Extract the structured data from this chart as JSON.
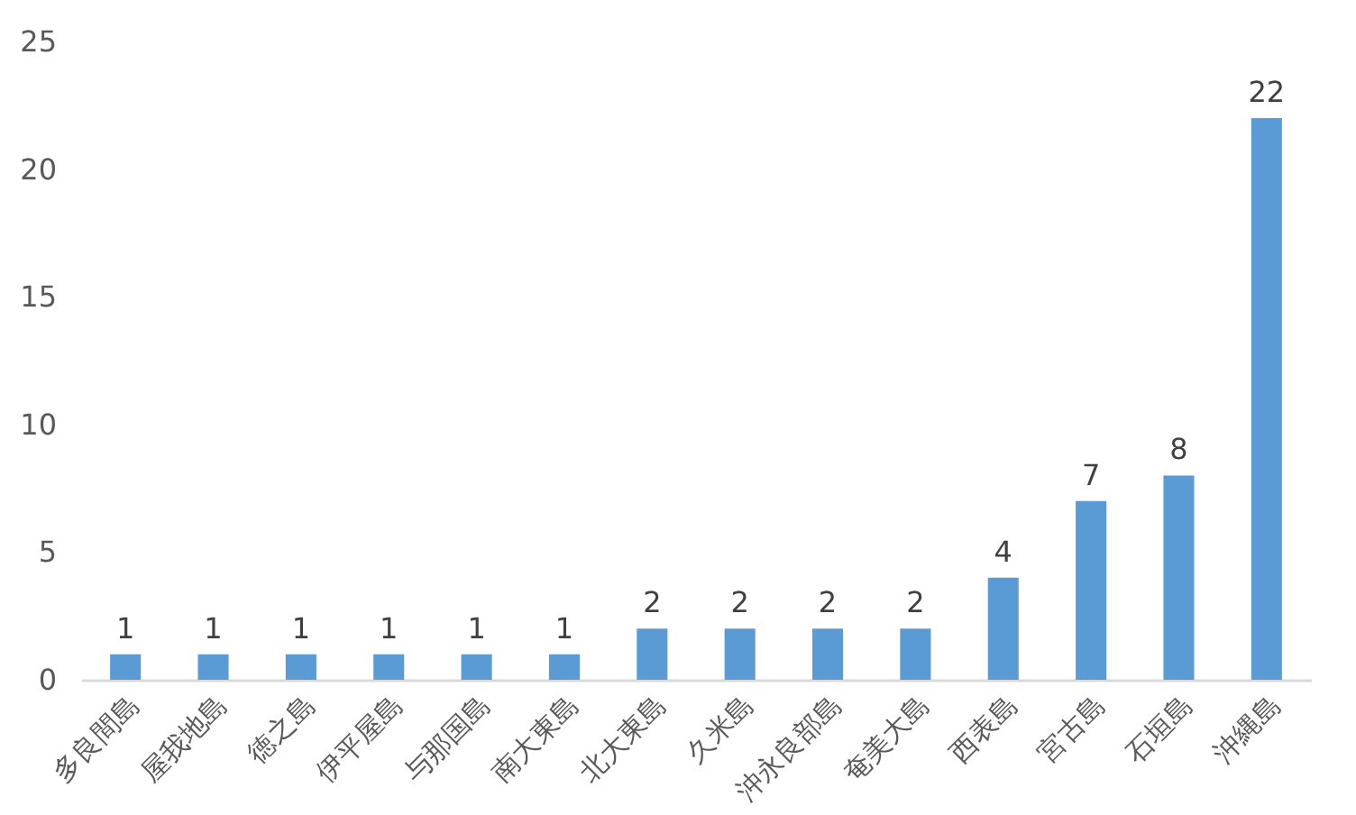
{
  "chart_data": {
    "type": "bar",
    "categories": [
      "多良間島",
      "屋我地島",
      "徳之島",
      "伊平屋島",
      "与那国島",
      "南大東島",
      "北大東島",
      "久米島",
      "沖永良部島",
      "奄美大島",
      "西表島",
      "宮古島",
      "石垣島",
      "沖縄島"
    ],
    "values": [
      1,
      1,
      1,
      1,
      1,
      1,
      2,
      2,
      2,
      2,
      4,
      7,
      8,
      22
    ],
    "color": "#5b9bd5",
    "ylim": [
      0,
      25
    ],
    "yticks": [
      0,
      5,
      10,
      15,
      20,
      25
    ],
    "data_labels": true
  }
}
